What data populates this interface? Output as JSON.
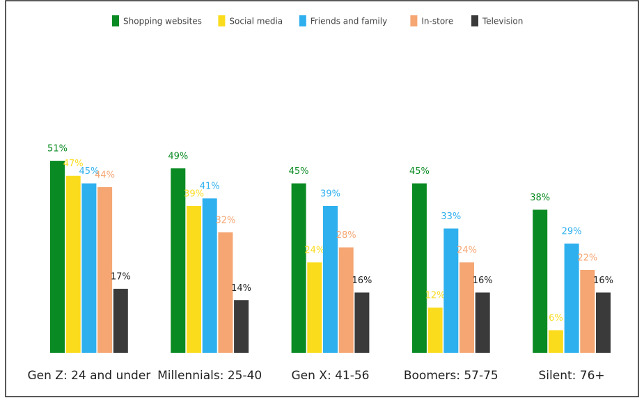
{
  "chart_data": {
    "type": "bar",
    "categories": [
      "Gen Z: 24 and under",
      "Millennials: 25-40",
      "Gen X: 41-56",
      "Boomers: 57-75",
      "Silent: 76+"
    ],
    "series": [
      {
        "name": "Shopping websites",
        "color": "#0a8a22",
        "values": [
          51,
          49,
          45,
          45,
          38
        ],
        "value_labels": [
          "51%",
          "49%",
          "45%",
          "45%",
          "38%"
        ]
      },
      {
        "name": "Social media",
        "color": "#fbdc1c",
        "values": [
          47,
          39,
          24,
          12,
          6
        ],
        "value_labels": [
          "47%",
          "39%",
          "24%",
          "12%",
          "6%"
        ]
      },
      {
        "name": "Friends and family",
        "color": "#2eb0ee",
        "values": [
          45,
          41,
          39,
          33,
          29
        ],
        "value_labels": [
          "45%",
          "41%",
          "39%",
          "33%",
          "29%"
        ]
      },
      {
        "name": "In-store",
        "color": "#f5a673",
        "values": [
          44,
          32,
          28,
          24,
          22
        ],
        "value_labels": [
          "44%",
          "32%",
          "28%",
          "24%",
          "22%"
        ]
      },
      {
        "name": "Television",
        "color": "#3a3a3a",
        "values": [
          17,
          14,
          16,
          16,
          16
        ],
        "value_labels": [
          "17%",
          "14%",
          "16%",
          "16%",
          "16%"
        ]
      }
    ],
    "legend": "top"
  }
}
